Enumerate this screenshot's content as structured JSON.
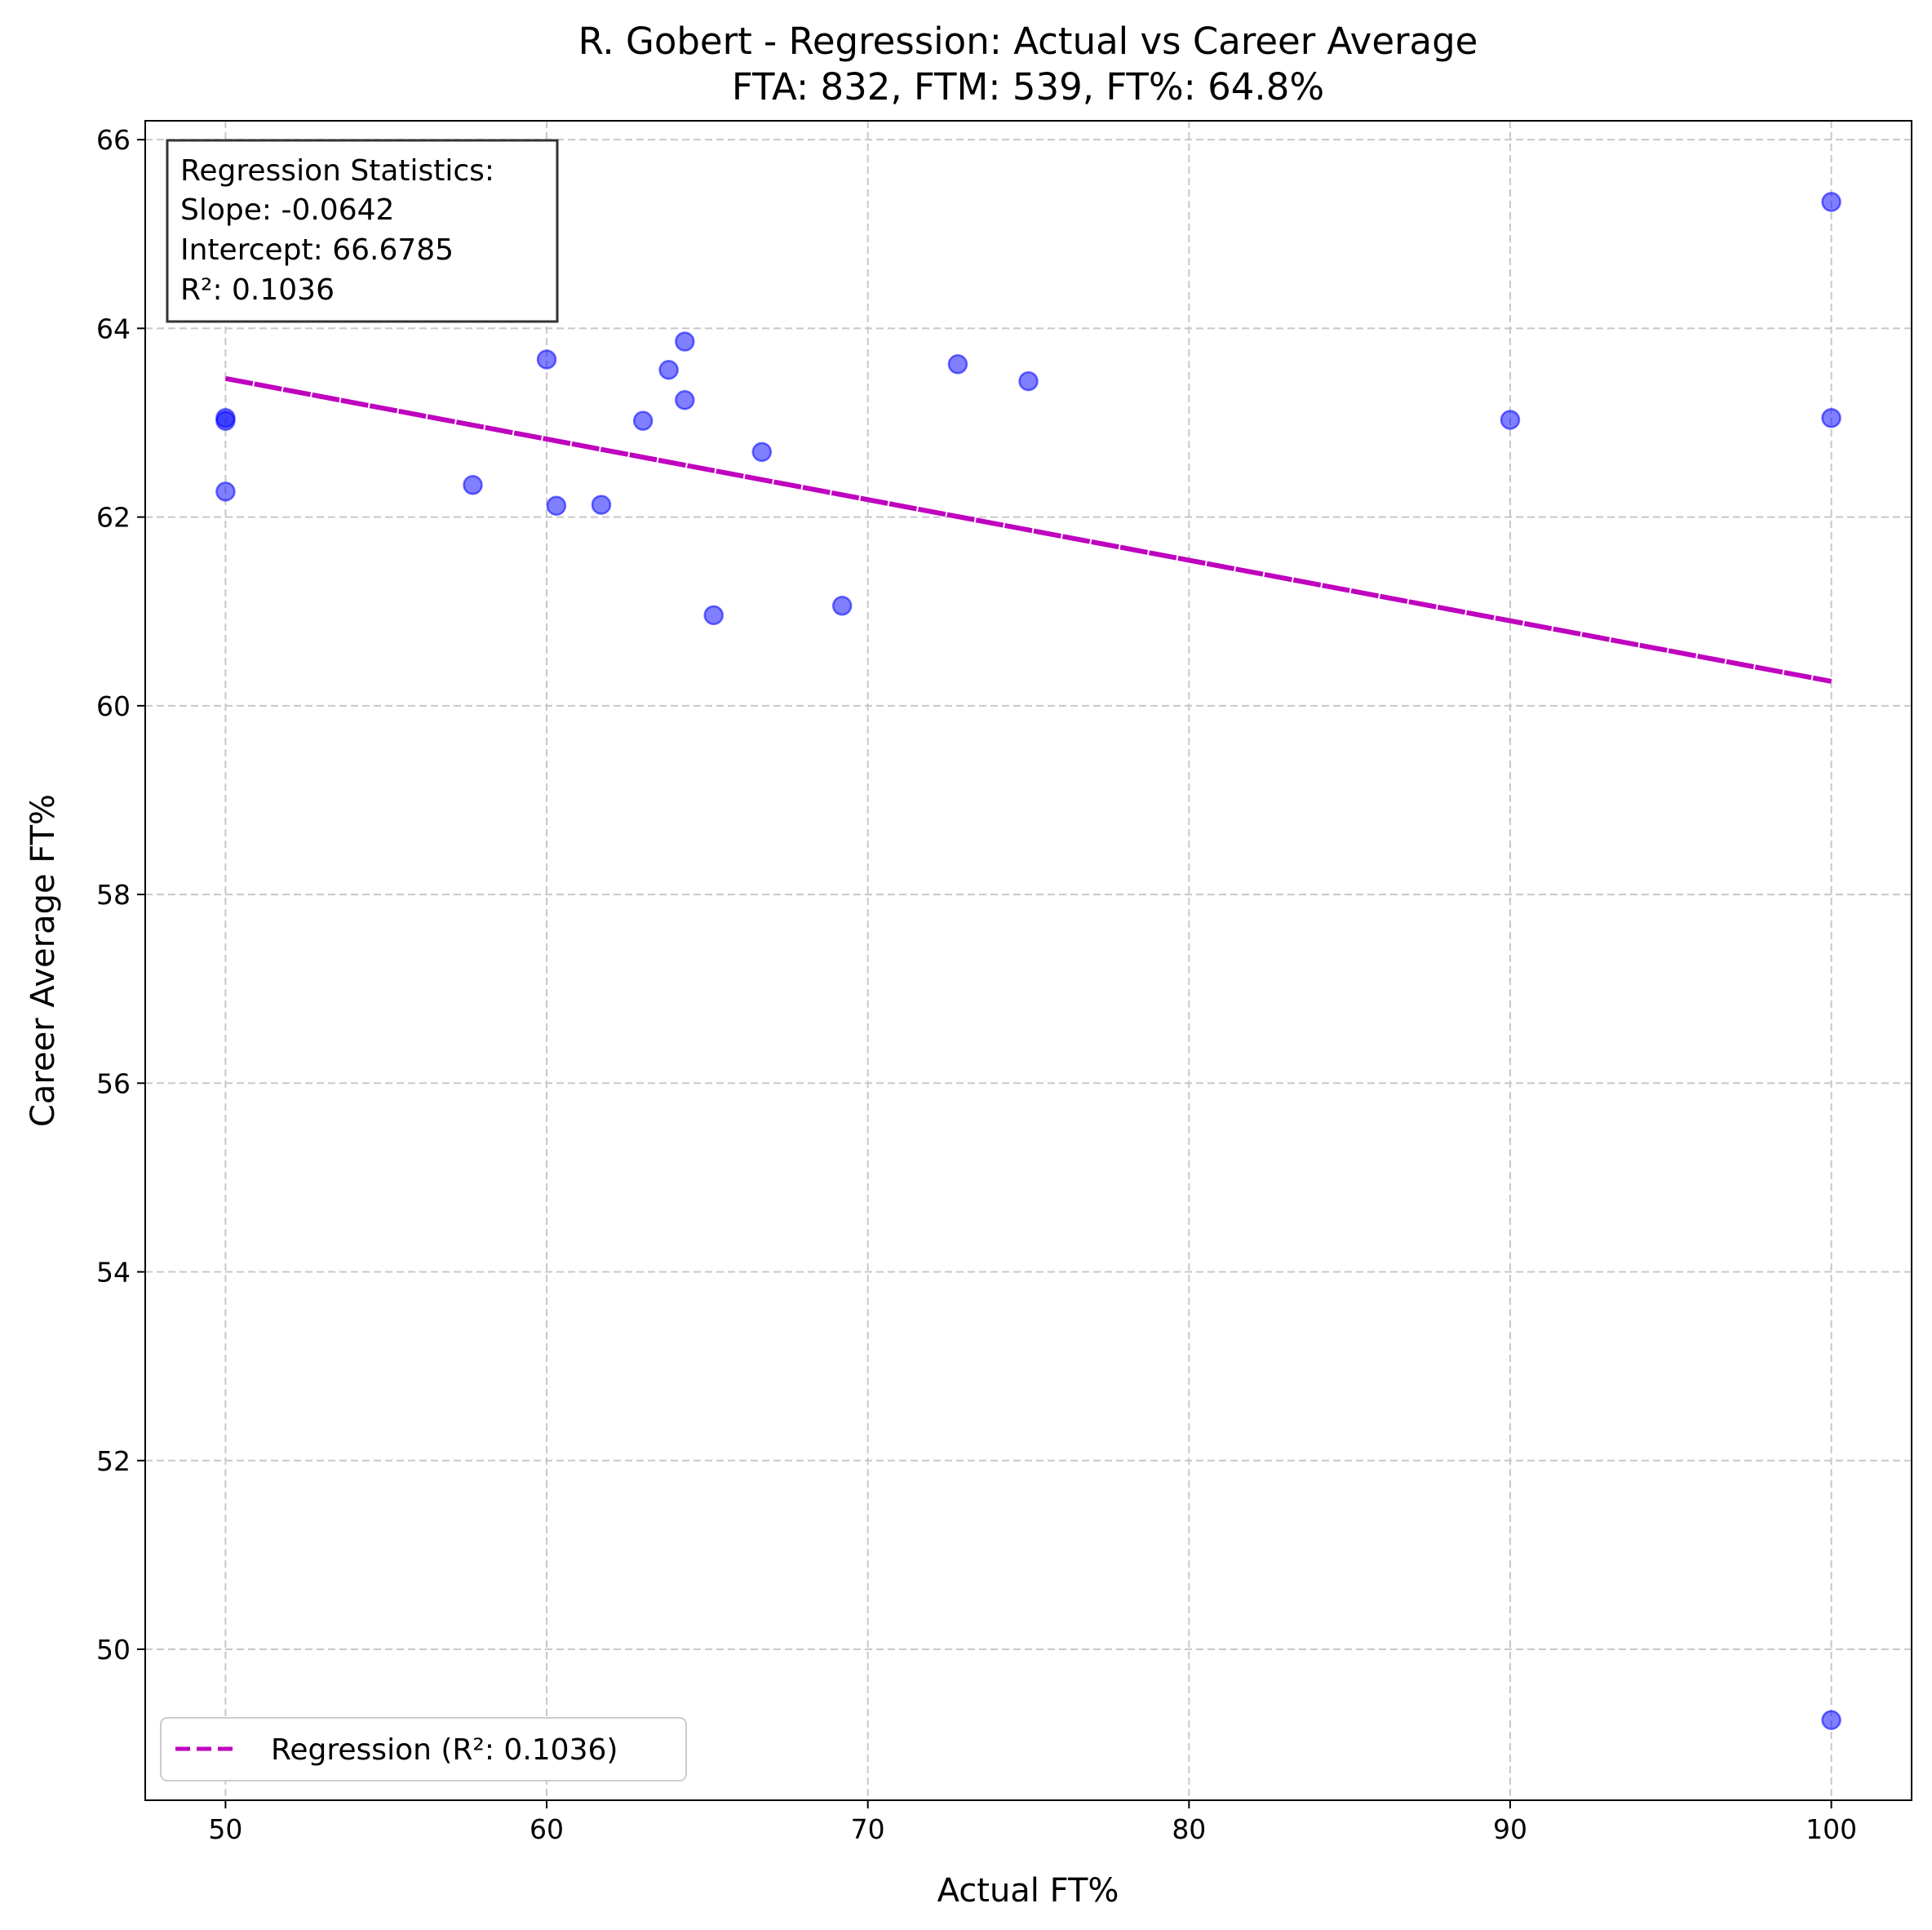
{
  "chart_data": {
    "type": "scatter",
    "title": "R. Gobert - Regression: Actual vs Career Average",
    "subtitle": "FTA: 832, FTM: 539, FT%: 64.8%",
    "xlabel": "Actual FT%",
    "ylabel": "Career Average FT%",
    "xlim": [
      47.5,
      102.5
    ],
    "ylim": [
      48.4,
      66.2
    ],
    "xticks": [
      50,
      60,
      70,
      80,
      90,
      100
    ],
    "yticks": [
      50,
      52,
      54,
      56,
      58,
      60,
      62,
      64,
      66
    ],
    "grid": true,
    "legend_position": "lower-left",
    "colors": {
      "points": "#0000ff",
      "regression": "#bf00bf",
      "grid": "#c8c8c8"
    },
    "series": [
      {
        "type": "scatter",
        "points": [
          {
            "x": 50.0,
            "y": 63.05
          },
          {
            "x": 50.0,
            "y": 63.02
          },
          {
            "x": 50.0,
            "y": 62.27
          },
          {
            "x": 57.7,
            "y": 62.34
          },
          {
            "x": 60.0,
            "y": 63.67
          },
          {
            "x": 60.3,
            "y": 62.12
          },
          {
            "x": 61.7,
            "y": 62.13
          },
          {
            "x": 63.0,
            "y": 63.02
          },
          {
            "x": 63.8,
            "y": 63.56
          },
          {
            "x": 64.3,
            "y": 63.86
          },
          {
            "x": 64.3,
            "y": 63.24
          },
          {
            "x": 65.2,
            "y": 60.96
          },
          {
            "x": 66.7,
            "y": 62.69
          },
          {
            "x": 69.2,
            "y": 61.06
          },
          {
            "x": 72.8,
            "y": 63.62
          },
          {
            "x": 75.0,
            "y": 63.44
          },
          {
            "x": 90.0,
            "y": 63.03
          },
          {
            "x": 100.0,
            "y": 65.34
          },
          {
            "x": 100.0,
            "y": 63.05
          },
          {
            "x": 100.0,
            "y": 49.25
          }
        ]
      },
      {
        "type": "line",
        "name": "Regression (R²: 0.1036)",
        "x": [
          50,
          100
        ],
        "y": [
          63.4685,
          60.2585
        ]
      }
    ],
    "annotation": {
      "lines": [
        "Regression Statistics:",
        "Slope: -0.0642",
        "Intercept: 66.6785",
        "R²: 0.1036"
      ]
    }
  }
}
